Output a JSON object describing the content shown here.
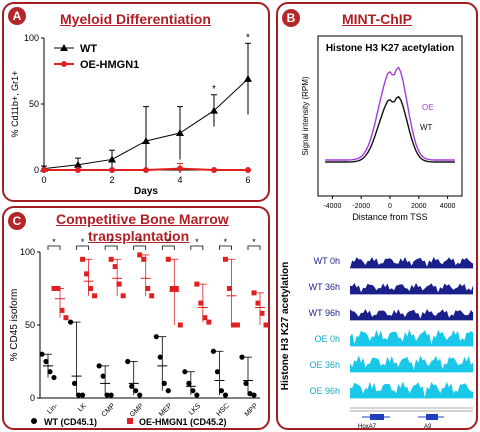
{
  "panels": {
    "a": {
      "badge": "A",
      "title": "Myeloid Differentiation"
    },
    "b": {
      "badge": "B",
      "title": "MINT-ChIP"
    },
    "c": {
      "badge": "C",
      "title_line1": "Competitive Bone Marrow",
      "title_line2": "transplantation"
    }
  },
  "chart_data": [
    {
      "type": "line",
      "panel": "A",
      "title": "Myeloid Differentiation",
      "xlabel": "Days",
      "ylabel": "% Cd11b+, Gr1+",
      "x": [
        0,
        1,
        2,
        3,
        4,
        5,
        6
      ],
      "xticks": [
        0,
        2,
        4,
        6
      ],
      "yticks": [
        0,
        50,
        100
      ],
      "xlim": [
        0,
        6
      ],
      "ylim": [
        0,
        100
      ],
      "legend_position": "top-left",
      "series": [
        {
          "name": "WT",
          "color": "#000000",
          "marker": "triangle",
          "values": [
            1,
            4,
            8,
            22,
            28,
            45,
            69
          ],
          "err": [
            2,
            5,
            7,
            26,
            20,
            12,
            27
          ]
        },
        {
          "name": "OE-HMGN1",
          "color": "#e02020",
          "marker": "circle",
          "values": [
            0,
            0,
            0,
            0,
            1,
            0,
            0
          ],
          "err": [
            0,
            0,
            0,
            0,
            4,
            0,
            0
          ]
        }
      ],
      "significance": [
        {
          "x": 5,
          "label": "*"
        },
        {
          "x": 6,
          "label": "*"
        }
      ]
    },
    {
      "type": "line",
      "panel": "B",
      "title": "Histone H3 K27 acetylation",
      "xlabel": "Distance from TSS",
      "ylabel": "Signal intensity (RPM)",
      "xlim": [
        -5000,
        5000
      ],
      "xticks": [
        -4000,
        -2000,
        0,
        2000,
        4000
      ],
      "series": [
        {
          "name": "OE",
          "color": "#a03ce0"
        },
        {
          "name": "WT",
          "color": "#111111"
        }
      ]
    },
    {
      "type": "scatter",
      "panel": "C",
      "title": "Competitive Bone Marrow transplantation",
      "ylabel": "% CD45 isoform",
      "categories": [
        "Lin-",
        "LK",
        "CMP",
        "GMP",
        "MEP",
        "LKS",
        "HSC",
        "MPP"
      ],
      "yticks": [
        0,
        50,
        100
      ],
      "ylim": [
        0,
        100
      ],
      "series": [
        {
          "name": "WT (CD45.1)",
          "color": "#000000",
          "marker": "circle",
          "points": [
            [
              30,
              25,
              18,
              14
            ],
            [
              52,
              10,
              2,
              2
            ],
            [
              22,
              15,
              2,
              2
            ],
            [
              25,
              8,
              5,
              2
            ],
            [
              42,
              28,
              10,
              5
            ],
            [
              18,
              10,
              5,
              2
            ],
            [
              32,
              18,
              5,
              2
            ],
            [
              28,
              10,
              3,
              2
            ]
          ],
          "means": [
            22,
            15,
            10,
            10,
            22,
            8,
            12,
            12
          ]
        },
        {
          "name": "OE-HMGN1 (CD45.2)",
          "color": "#e02020",
          "marker": "square",
          "points": [
            [
              75,
              75,
              60,
              55
            ],
            [
              95,
              85,
              75,
              70
            ],
            [
              95,
              90,
              78,
              70
            ],
            [
              98,
              95,
              75,
              70
            ],
            [
              95,
              75,
              75,
              50
            ],
            [
              78,
              65,
              55,
              52
            ],
            [
              95,
              75,
              50,
              50
            ],
            [
              72,
              65,
              58,
              50
            ]
          ],
          "means": [
            68,
            80,
            82,
            82,
            73,
            62,
            70,
            62
          ]
        }
      ],
      "significance": [
        "*",
        "*",
        "*",
        "*",
        "*",
        "*",
        "*",
        "*"
      ]
    }
  ],
  "tracks": {
    "ylabel": "Histone H3 K27 acetylation",
    "items": [
      {
        "label": "WT 0h",
        "color": "#1a1f8a"
      },
      {
        "label": "WT 36h",
        "color": "#1a1f8a"
      },
      {
        "label": "WT 96h",
        "color": "#1a1f8a"
      },
      {
        "label": "OE 0h",
        "color": "#19c8e8"
      },
      {
        "label": "OE 36h",
        "color": "#19c8e8"
      },
      {
        "label": "OE 96h",
        "color": "#19c8e8"
      }
    ],
    "genes": [
      "HoxA7",
      "A9"
    ]
  }
}
